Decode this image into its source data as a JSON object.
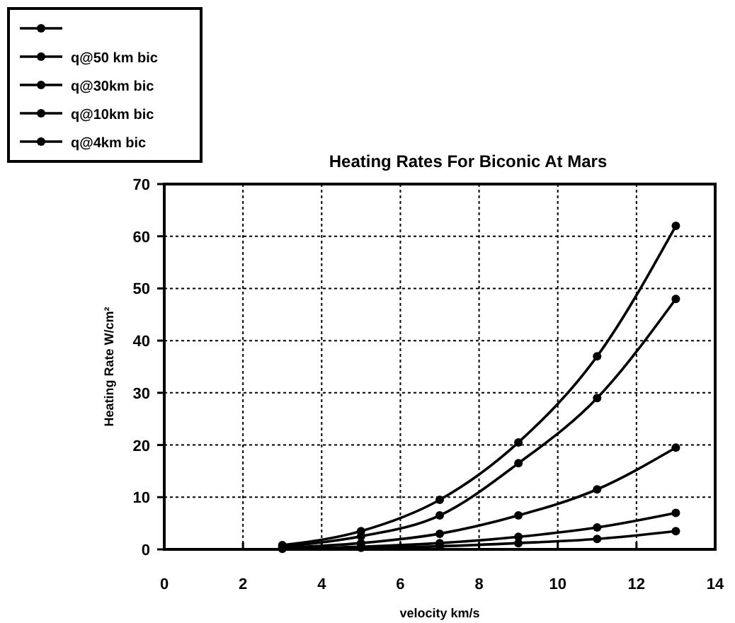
{
  "chart_data": {
    "type": "line",
    "title": "Heating Rates For Biconic At Mars",
    "xlabel": "velocity km/s",
    "ylabel": "Heating Rate W/cm²",
    "x": [
      3,
      5,
      7,
      9,
      11,
      13
    ],
    "series": [
      {
        "color": "#000000",
        "values": [
          0.8,
          3.5,
          9.5,
          20.5,
          37,
          62
        ]
      },
      {
        "name": "q@50 km bic",
        "color": "#000000",
        "values": [
          0.1,
          0.3,
          0.6,
          1.2,
          2,
          3.5
        ]
      },
      {
        "name": "q@30km bic",
        "color": "#000000",
        "values": [
          0.2,
          0.5,
          1.2,
          2.4,
          4.2,
          7
        ]
      },
      {
        "name": "q@10km bic",
        "color": "#000000",
        "values": [
          0.3,
          1.2,
          3,
          6.5,
          11.5,
          19.5
        ]
      },
      {
        "name": "q@4km bic",
        "color": "#000000",
        "values": [
          0.5,
          2.5,
          6.5,
          16.5,
          29,
          48
        ]
      }
    ],
    "xlim": [
      0,
      14
    ],
    "xticks": [
      0,
      2,
      4,
      6,
      8,
      10,
      12,
      14
    ],
    "ylim": [
      0,
      70
    ],
    "yticks": [
      0,
      10,
      20,
      30,
      40,
      50,
      60,
      70
    ],
    "grid": true,
    "legend": "top left",
    "marker": "circle",
    "line_style": "solid"
  }
}
